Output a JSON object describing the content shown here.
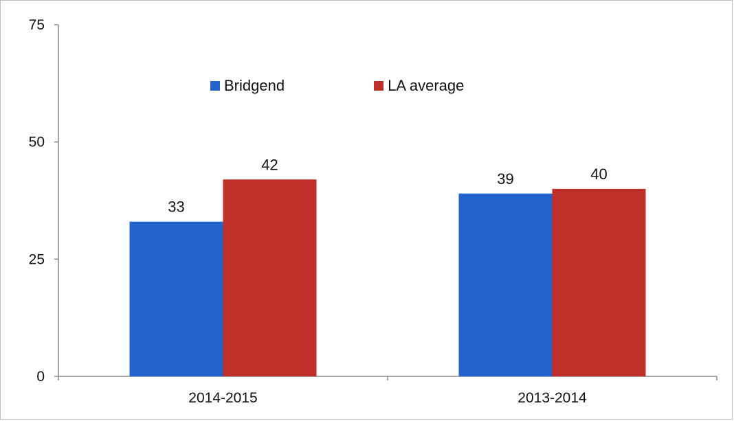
{
  "chart_data": {
    "type": "bar",
    "categories": [
      "2014-2015",
      "2013-2014"
    ],
    "series": [
      {
        "name": "Bridgend",
        "color": "#2563cc",
        "values": [
          33,
          39
        ]
      },
      {
        "name": "LA average",
        "color": "#c0302a",
        "values": [
          42,
          40
        ]
      }
    ],
    "ylim": [
      0,
      75
    ],
    "yticks": [
      "0",
      "25",
      "50",
      "75"
    ],
    "title": "",
    "xlabel": "",
    "ylabel": "",
    "legend_position": "top-center",
    "grid": false
  }
}
